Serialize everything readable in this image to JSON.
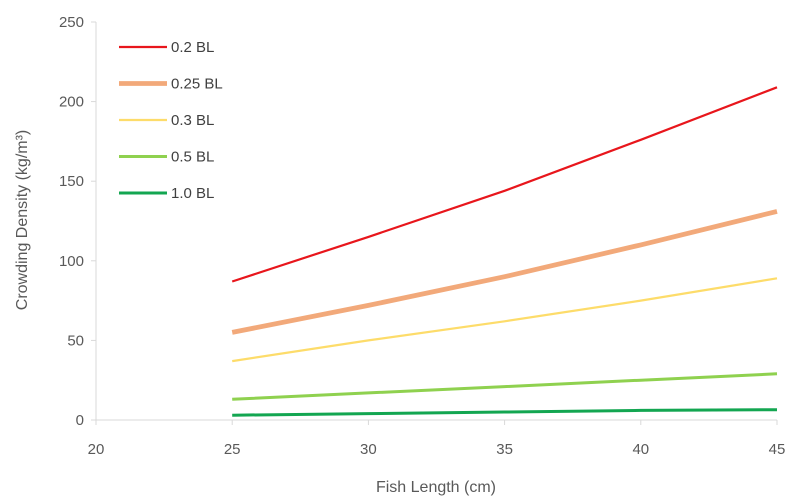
{
  "chart_data": {
    "type": "line",
    "title": "",
    "xlabel": "Fish Length (cm)",
    "ylabel": "Crowding Density (kg/m³)",
    "xlim": [
      20,
      45
    ],
    "ylim": [
      0,
      250
    ],
    "xticks": [
      20,
      25,
      30,
      35,
      40,
      45
    ],
    "yticks": [
      0,
      50,
      100,
      150,
      200,
      250
    ],
    "grid": false,
    "legend_position": "top-left",
    "series": [
      {
        "name": "0.2 BL",
        "color": "#e8161c",
        "stroke_weight": "thin",
        "x": [
          25,
          30,
          35,
          40,
          45
        ],
        "y": [
          87,
          115,
          144,
          176,
          209
        ]
      },
      {
        "name": "0.25 BL",
        "color": "#f2a97a",
        "stroke_weight": "thick",
        "x": [
          25,
          30,
          35,
          40,
          45
        ],
        "y": [
          55,
          72,
          90,
          110,
          131
        ]
      },
      {
        "name": "0.3 BL",
        "color": "#fddc6a",
        "stroke_weight": "thin",
        "x": [
          25,
          30,
          35,
          40,
          45
        ],
        "y": [
          37,
          50,
          62,
          75,
          89
        ]
      },
      {
        "name": "0.5 BL",
        "color": "#8fd14f",
        "stroke_weight": "medium",
        "x": [
          25,
          30,
          35,
          40,
          45
        ],
        "y": [
          13,
          17,
          21,
          25,
          29
        ]
      },
      {
        "name": "1.0 BL",
        "color": "#13a651",
        "stroke_weight": "medium",
        "x": [
          25,
          30,
          35,
          40,
          45
        ],
        "y": [
          3,
          4,
          5,
          6,
          6.5
        ]
      }
    ]
  }
}
